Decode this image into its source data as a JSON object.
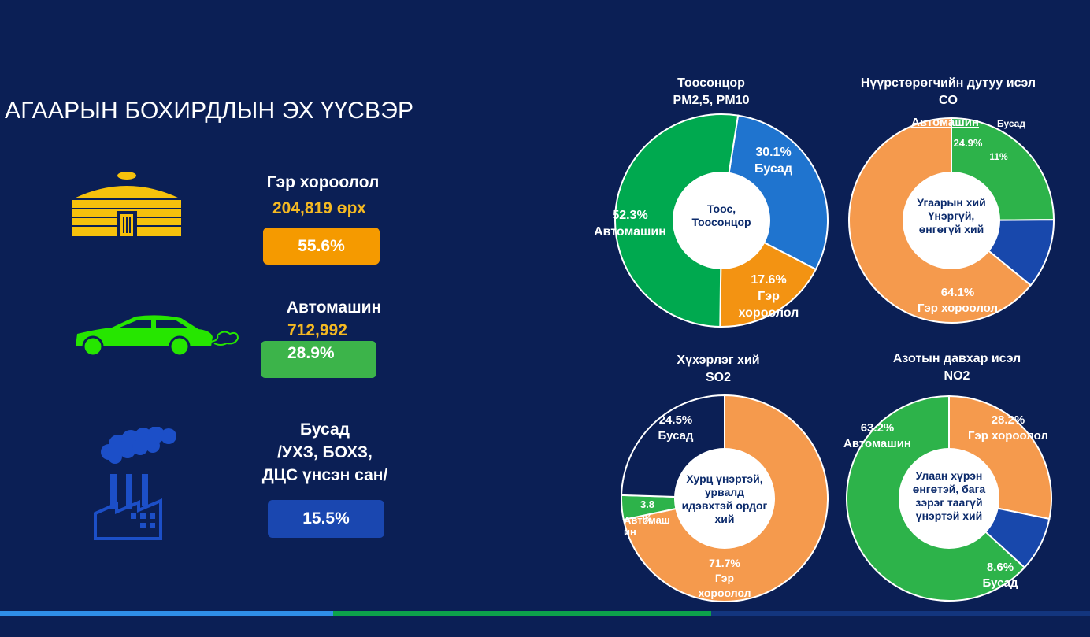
{
  "page": {
    "title": "АГААРЫН БОХИРДЛЫН ЭХ ҮҮСВЭР"
  },
  "sources": [
    {
      "name": "Гэр хороолол",
      "count": "204,819 өрх",
      "percent": "55.6%",
      "color": "#f59a00",
      "icon": "ger-icon"
    },
    {
      "name": "Автомашин",
      "count": "712,992",
      "percent": "28.9%",
      "color": "#3cb44a",
      "icon": "car-icon"
    },
    {
      "name_lines": [
        "Бусад",
        "/УХЗ, БОХЗ,",
        "ДЦС үнсэн сан/"
      ],
      "percent": "15.5%",
      "color": "#1a47b0",
      "icon": "factory-icon"
    }
  ],
  "chart_data": [
    {
      "type": "pie",
      "title_lines": [
        "Тоосонцор",
        "PM2,5, PM10"
      ],
      "center_lines": [
        "Тоос,",
        "Тоосонцор"
      ],
      "slices": [
        {
          "label_lines": [
            "30.1%",
            "Бусад"
          ],
          "value": 30.1,
          "color": "#1f74cf"
        },
        {
          "label_lines": [
            "17.6%",
            "Гэр",
            "хороолол"
          ],
          "value": 17.6,
          "color": "#f39312"
        },
        {
          "label_lines": [
            "52.3%",
            "Автомашин"
          ],
          "value": 52.3,
          "color": "#00a94f"
        }
      ]
    },
    {
      "type": "pie",
      "title_lines": [
        "Нүүрстөрөгчийн дутуу исэл",
        "CO"
      ],
      "center_lines": [
        "Угаарын хий",
        "Үнэргүй,",
        "өнгөгүй хий"
      ],
      "slices": [
        {
          "label_lines": [
            "24.9%"
          ],
          "value": 24.9,
          "color": "#2db34a"
        },
        {
          "label_lines": [
            "11%"
          ],
          "value": 11,
          "color": "#1848ac"
        },
        {
          "label_lines": [
            "64.1%",
            "Гэр хороолол"
          ],
          "value": 64.1,
          "color": "#f59a4d"
        }
      ],
      "extra_labels": [
        "Автомашин",
        "Бусад"
      ]
    },
    {
      "type": "pie",
      "title_lines": [
        "Хүхэрлэг хий",
        "SO2"
      ],
      "center_lines": [
        "Хурц үнэртэй,",
        "урвалд",
        "идэвхтэй  ордог",
        "хий"
      ],
      "slices": [
        {
          "label_lines": [
            "71.7%",
            "Гэр",
            "хороолол"
          ],
          "value": 71.7,
          "color": "#f59a4d"
        },
        {
          "label_lines": [
            "3.8",
            "%"
          ],
          "value": 3.8,
          "color": "#2db34a"
        },
        {
          "label_lines": [
            "24.5%",
            "Бусад"
          ],
          "value": 24.5,
          "color": "#0b1f55"
        }
      ],
      "extra_labels": [
        "Автомаш",
        "ин"
      ]
    },
    {
      "type": "pie",
      "title_lines": [
        "Азотын давхар исэл",
        "NO2"
      ],
      "center_lines": [
        "Улаан хүрэн",
        "өнгөтэй, бага",
        "зэрэг таагүй",
        "үнэртэй хий"
      ],
      "slices": [
        {
          "label_lines": [
            "28.2%",
            "Гэр хороолол"
          ],
          "value": 28.2,
          "color": "#f59a4d"
        },
        {
          "label_lines": [
            "8.6%",
            "Бусад"
          ],
          "value": 8.6,
          "color": "#1848ac"
        },
        {
          "label_lines": [
            "63.2%",
            "Автомашин"
          ],
          "value": 63.2,
          "color": "#2db34a"
        }
      ]
    }
  ],
  "bottom_bar": {
    "colors": [
      "#2f8ee8",
      "#0da24b",
      "#13357e"
    ]
  }
}
